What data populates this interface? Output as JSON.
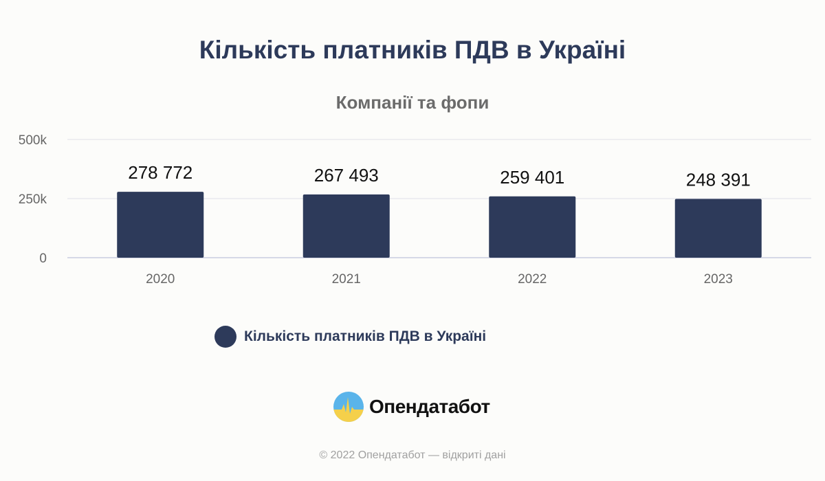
{
  "title": "Кількість платників ПДВ в Україні",
  "subtitle": "Компанії та фопи",
  "legend": {
    "label": "Кількість платників ПДВ в Україні",
    "color": "#2d3a5a"
  },
  "brand": {
    "name": "Опендатабот",
    "logo_icon": "opendatabot-logo-icon"
  },
  "footer": "© 2022 Опендатабот — відкриті дані",
  "chart_data": {
    "type": "bar",
    "title": "Кількість платників ПДВ в Україні",
    "subtitle": "Компанії та фопи",
    "categories": [
      "2020",
      "2021",
      "2022",
      "2023"
    ],
    "series": [
      {
        "name": "Кількість платників ПДВ в Україні",
        "values": [
          278772,
          267493,
          259401,
          248391
        ]
      }
    ],
    "data_labels": [
      "278 772",
      "267 493",
      "259 401",
      "248 391"
    ],
    "yticks": [
      0,
      250000,
      500000
    ],
    "ytick_labels": [
      "0",
      "250k",
      "500k"
    ],
    "ylim": [
      0,
      500000
    ],
    "grid": true,
    "legend_position": "bottom",
    "colors": {
      "bar": "#2d3a5a",
      "grid": "#e0e0e8",
      "axis": "#c8cce0",
      "tick_text": "#666666",
      "label_text": "#111111"
    }
  }
}
